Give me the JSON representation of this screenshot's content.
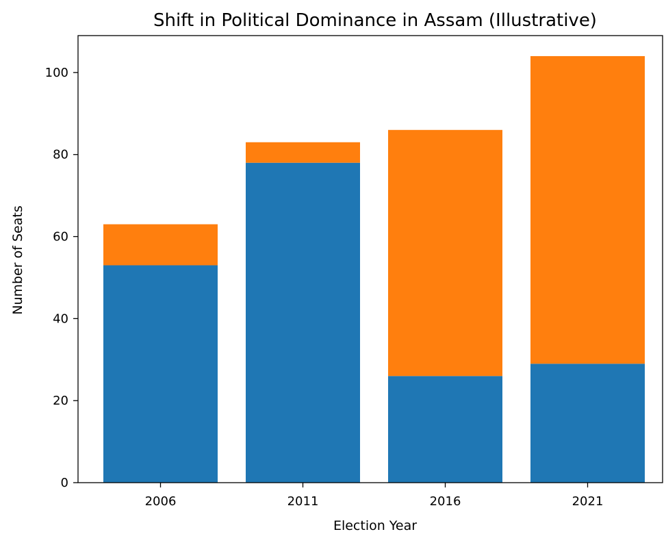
{
  "chart_data": {
    "type": "bar",
    "stacked": true,
    "title": "Shift in Political Dominance in Assam (Illustrative)",
    "xlabel": "Election Year",
    "ylabel": "Number of Seats",
    "categories": [
      "2006",
      "2011",
      "2016",
      "2021"
    ],
    "series": [
      {
        "color": "#1f77b4",
        "values": [
          53,
          78,
          26,
          29
        ]
      },
      {
        "color": "#ff7f0e",
        "values": [
          10,
          5,
          60,
          75
        ]
      }
    ],
    "ylim": [
      0,
      109
    ],
    "yticks": [
      0,
      20,
      40,
      60,
      80,
      100
    ],
    "grid": false,
    "legend": "none"
  }
}
